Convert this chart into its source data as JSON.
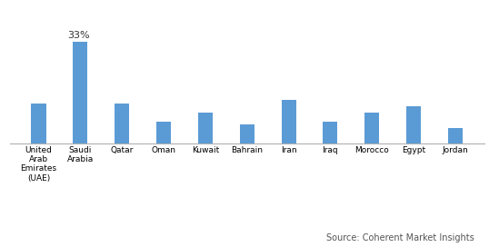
{
  "categories": [
    "United\nArab\nEmirates\n(UAE)",
    "Saudi\nArabia",
    "Qatar",
    "Oman",
    "Kuwait",
    "Bahrain",
    "Iran",
    "Iraq",
    "Morocco",
    "Egypt",
    "Jordan"
  ],
  "values": [
    13,
    33,
    13,
    7,
    10,
    6,
    14,
    7,
    10,
    12,
    5
  ],
  "bar_color": "#5B9BD5",
  "annotation_bar": 1,
  "annotation_text": "33%",
  "annotation_fontsize": 8,
  "source_text": "Source: Coherent Market Insights",
  "source_fontsize": 7,
  "ylim": [
    0,
    40
  ],
  "bar_width": 0.35,
  "tick_fontsize": 6.5,
  "background_color": "#ffffff",
  "spine_color": "#b0b0b0",
  "border_color": "#b0b0b0"
}
